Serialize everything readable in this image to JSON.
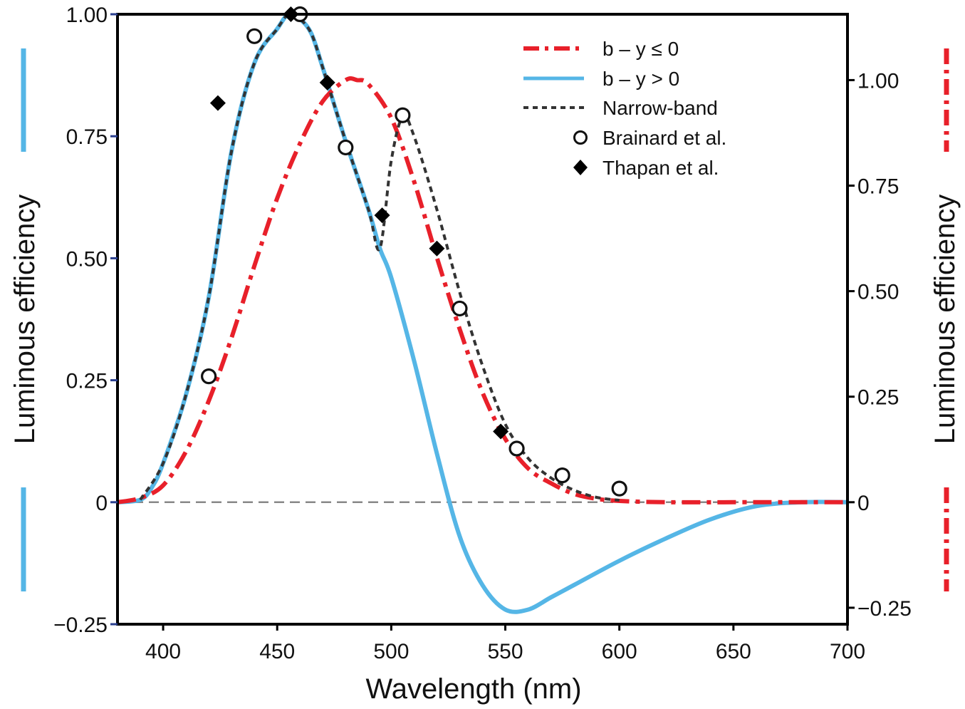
{
  "chart_data": {
    "type": "line",
    "xlabel": "Wavelength (nm)",
    "ylabel_left": "Luminous efficiency",
    "ylabel_right": "Luminous efficiency",
    "xlim": [
      380,
      700
    ],
    "ylim_left": [
      -0.25,
      1.0
    ],
    "ylim_right": [
      -0.289,
      1.156
    ],
    "x_ticks": [
      400,
      450,
      500,
      550,
      600,
      650,
      700
    ],
    "x_tick_labels": [
      "400",
      "450",
      "500",
      "550",
      "600",
      "650",
      "700"
    ],
    "y_left_ticks": [
      -0.25,
      0,
      0.25,
      0.5,
      0.75,
      1.0
    ],
    "y_left_tick_labels": [
      "−0.25",
      "0",
      "0.25",
      "0.50",
      "0.75",
      "1.00"
    ],
    "y_right_ticks": [
      -0.25,
      0,
      0.25,
      0.5,
      0.75,
      1.0
    ],
    "y_right_tick_labels": [
      "−0.25",
      "0",
      "0.25",
      "0.50",
      "0.75",
      "1.00"
    ],
    "zero_line": true,
    "legend_position": "top-right",
    "series": [
      {
        "name": "b – y ≤ 0",
        "style": "dash-dot",
        "color": "#e8202a",
        "axis": "right",
        "x": [
          380,
          390,
          400,
          410,
          420,
          430,
          440,
          450,
          460,
          470,
          480,
          485,
          490,
          500,
          510,
          520,
          530,
          540,
          550,
          560,
          570,
          580,
          590,
          600,
          620,
          650,
          700
        ],
        "y": [
          0.0,
          0.01,
          0.04,
          0.12,
          0.24,
          0.39,
          0.56,
          0.72,
          0.85,
          0.95,
          1.0,
          1.0,
          0.99,
          0.91,
          0.76,
          0.58,
          0.41,
          0.26,
          0.15,
          0.08,
          0.045,
          0.02,
          0.008,
          0.003,
          0.0,
          0.0,
          0.0
        ]
      },
      {
        "name": "b – y > 0",
        "style": "solid",
        "color": "#55b6e6",
        "axis": "left",
        "x": [
          380,
          390,
          395,
          400,
          410,
          420,
          430,
          440,
          450,
          455,
          460,
          465,
          470,
          480,
          490,
          495,
          500,
          510,
          520,
          530,
          540,
          550,
          560,
          570,
          580,
          600,
          620,
          640,
          660,
          680,
          700
        ],
        "y": [
          0.0,
          0.005,
          0.03,
          0.08,
          0.22,
          0.42,
          0.72,
          0.9,
          0.97,
          1.0,
          0.99,
          0.96,
          0.89,
          0.74,
          0.6,
          0.52,
          0.46,
          0.29,
          0.1,
          -0.07,
          -0.17,
          -0.22,
          -0.22,
          -0.195,
          -0.17,
          -0.12,
          -0.075,
          -0.035,
          -0.008,
          0.0,
          0.0
        ]
      },
      {
        "name": "Narrow-band",
        "style": "dotted",
        "color": "#333333",
        "axis": "left",
        "x": [
          390,
          400,
          410,
          420,
          430,
          440,
          450,
          455,
          460,
          465,
          470,
          480,
          490,
          495,
          500,
          505,
          510,
          520,
          530,
          540,
          550,
          560,
          570,
          580,
          590,
          600
        ],
        "y": [
          0.005,
          0.08,
          0.22,
          0.42,
          0.72,
          0.9,
          0.97,
          1.0,
          0.99,
          0.96,
          0.89,
          0.74,
          0.6,
          0.52,
          0.7,
          0.79,
          0.75,
          0.6,
          0.43,
          0.28,
          0.16,
          0.09,
          0.05,
          0.025,
          0.01,
          0.004
        ]
      },
      {
        "name": "Brainard et al.",
        "style": "open-circle",
        "color": "#111111",
        "axis": "left",
        "x": [
          420,
          440,
          460,
          480,
          505,
          530,
          555,
          575,
          600
        ],
        "y": [
          0.258,
          0.955,
          1.0,
          0.727,
          0.793,
          0.397,
          0.11,
          0.055,
          0.028
        ]
      },
      {
        "name": "Thapan et al.",
        "style": "diamond",
        "color": "#000000",
        "axis": "left",
        "x": [
          424,
          456,
          472,
          496,
          520,
          548
        ],
        "y": [
          0.818,
          1.0,
          0.86,
          0.588,
          0.52,
          0.145
        ]
      }
    ]
  }
}
